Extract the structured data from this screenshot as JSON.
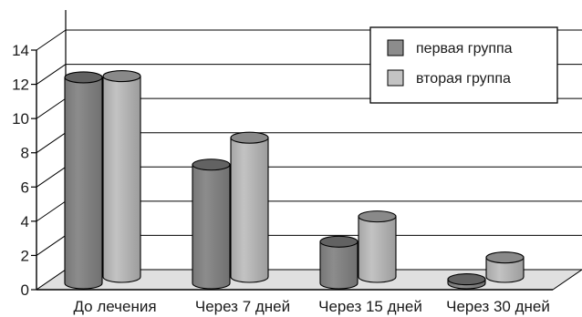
{
  "chart_data": {
    "type": "bar",
    "style": "3d-cylinder",
    "categories": [
      "До лечения",
      "Через 7 дней",
      "Через 15 дней",
      "Через 30 дней"
    ],
    "series": [
      {
        "name": "первая группа",
        "values": [
          12.3,
          7.2,
          2.7,
          0.5
        ],
        "color": "#8c8c8c"
      },
      {
        "name": "вторая группа",
        "values": [
          12.0,
          8.4,
          3.8,
          1.4
        ],
        "color": "#c3c3c3"
      }
    ],
    "ylim": [
      0,
      14
    ],
    "yticks": [
      0,
      2,
      4,
      6,
      8,
      10,
      12,
      14
    ],
    "grid": true,
    "legend_position": "top-right",
    "title": "",
    "xlabel": "",
    "ylabel": ""
  }
}
